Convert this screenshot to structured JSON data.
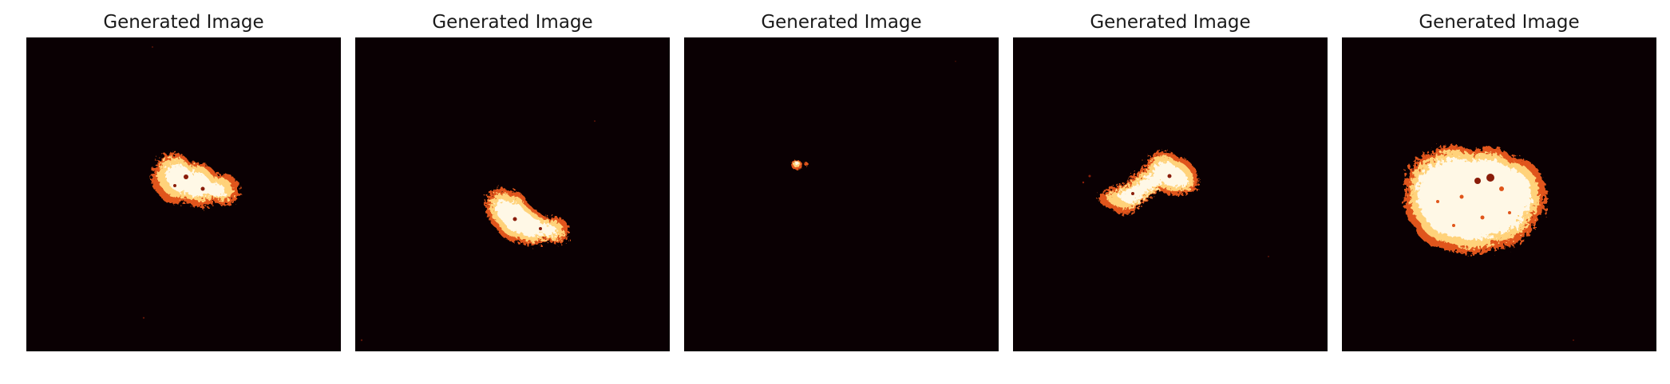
{
  "figure": {
    "panels": [
      {
        "title": "Generated Image",
        "blob": "medium-upper-left"
      },
      {
        "title": "Generated Image",
        "blob": "medium-center"
      },
      {
        "title": "Generated Image",
        "blob": "tiny-speck"
      },
      {
        "title": "Generated Image",
        "blob": "elongated-diagonal"
      },
      {
        "title": "Generated Image",
        "blob": "large-round"
      }
    ],
    "colors": {
      "background": "#0a0003",
      "hot_core": "#fff8e6",
      "hot_mid": "#ffd27a",
      "hot_edge": "#e0551a",
      "dark_edge": "#8a1d0a"
    },
    "colormap": "afmhot-like"
  }
}
